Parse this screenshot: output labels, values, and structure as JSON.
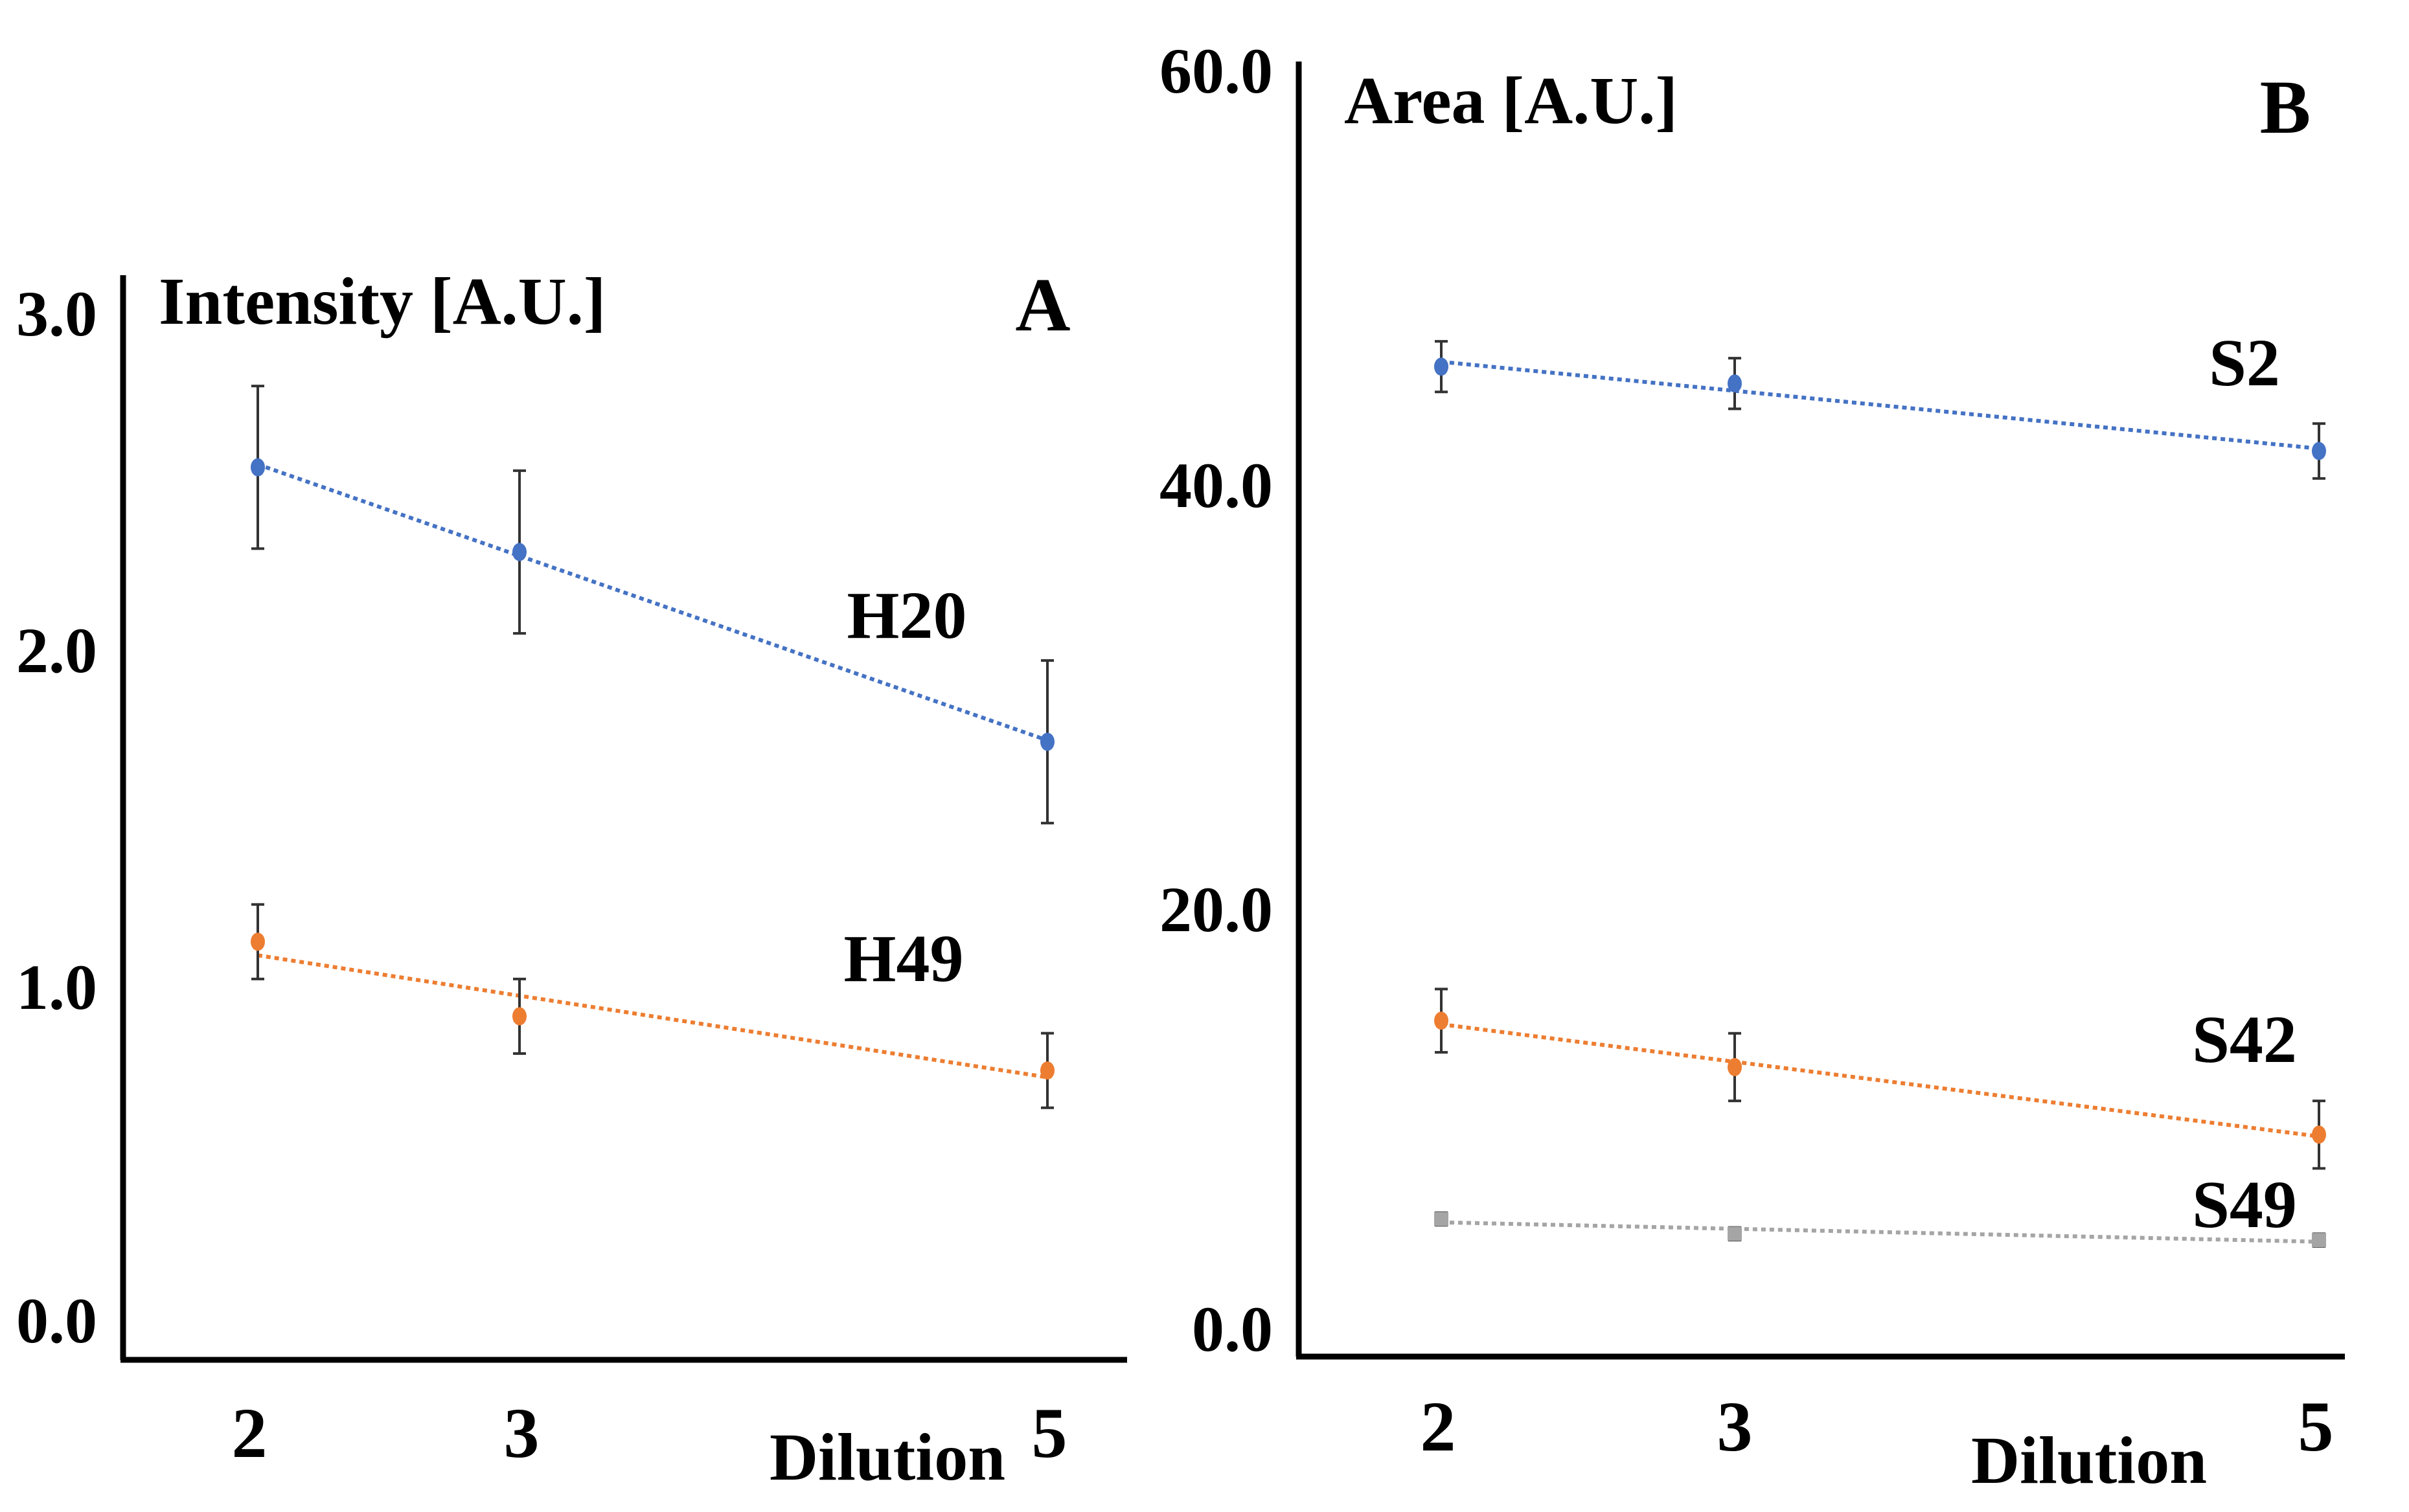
{
  "colors": {
    "blue": "#4472c4",
    "orange": "#ed7d31",
    "gray": "#a5a5a5"
  },
  "chart_data": [
    {
      "type": "line",
      "panel": "A",
      "ylabel": "Intensity [A.U.]",
      "xlabel": "Dilution",
      "categories": [
        "2",
        "3",
        "5"
      ],
      "ylim": [
        0,
        3
      ],
      "yticks": [
        "0.0",
        "1.0",
        "2.0",
        "3.0"
      ],
      "grid": false,
      "series": [
        {
          "name": "H20",
          "color": "#4472c4",
          "values": [
            2.5,
            2.25,
            1.69
          ],
          "errors": [
            0.24,
            0.24,
            0.24
          ]
        },
        {
          "name": "H49",
          "color": "#ed7d31",
          "values": [
            1.1,
            0.88,
            0.72
          ],
          "errors": [
            0.11,
            0.11,
            0.11
          ]
        }
      ]
    },
    {
      "type": "line",
      "panel": "B",
      "ylabel": "Area [A.U.]",
      "xlabel": "Dilution",
      "categories": [
        "2",
        "3",
        "5"
      ],
      "ylim": [
        0,
        60
      ],
      "yticks": [
        "0.0",
        "20.0",
        "40.0",
        "60.0"
      ],
      "grid": false,
      "series": [
        {
          "name": "S2",
          "color": "#4472c4",
          "values": [
            46.0,
            45.2,
            42.0
          ],
          "errors": [
            1.2,
            1.2,
            1.3
          ]
        },
        {
          "name": "S42",
          "color": "#ed7d31",
          "values": [
            15.0,
            12.8,
            9.6
          ],
          "errors": [
            1.5,
            1.6,
            1.6
          ]
        },
        {
          "name": "S49",
          "color": "#a5a5a5",
          "values": [
            5.6,
            4.9,
            4.6
          ],
          "errors": [
            0.3,
            0.3,
            0.3
          ]
        }
      ]
    }
  ]
}
